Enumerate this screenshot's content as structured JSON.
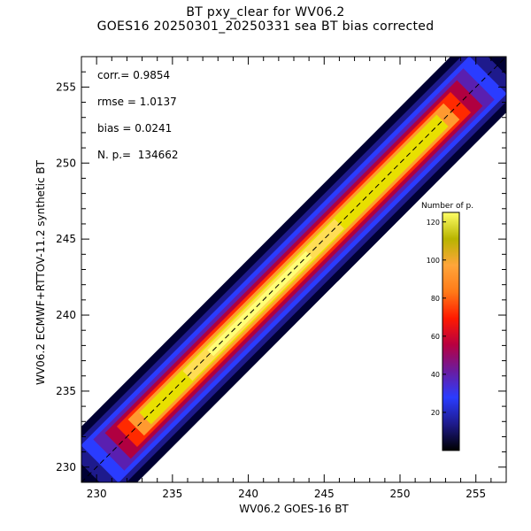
{
  "chart_data": {
    "type": "heatmap",
    "title": "BT pxy_clear for WV06.2",
    "subtitle": "GOES16 20250301_20250331 sea BT bias corrected",
    "xlabel": "WV06.2 GOES-16 BT",
    "ylabel": "WV06.2 ECMWF+RTTOV-11.2 synthetic BT",
    "xlim": [
      229,
      257
    ],
    "ylim": [
      229,
      257
    ],
    "x_ticks": [
      230,
      235,
      240,
      245,
      250,
      255
    ],
    "y_ticks": [
      230,
      235,
      240,
      245,
      250,
      255
    ],
    "stats": [
      {
        "label": "corr.=",
        "value": "0.9854"
      },
      {
        "label": "rmse =",
        "value": "1.0137"
      },
      {
        "label": "bias =",
        "value": "0.0241"
      },
      {
        "label": "N. p.=",
        "value": "134662"
      }
    ],
    "reference_line": {
      "style": "dashed",
      "x": [
        229,
        257
      ],
      "y": [
        229,
        257
      ]
    },
    "density": {
      "along_axis_extent": [
        229,
        257
      ],
      "half_width_outer": 2.6,
      "half_width_levels": [
        2.6,
        2.1,
        1.75,
        1.45,
        1.2,
        0.95,
        0.75,
        0.55
      ],
      "peak_region": [
        236,
        246
      ]
    },
    "colorbar": {
      "title": "Number of p.",
      "range": [
        0,
        125
      ],
      "ticks": [
        20,
        40,
        60,
        80,
        100,
        120
      ],
      "colors": [
        "#000000",
        "#1e1a8c",
        "#2a3cff",
        "#6a1ca0",
        "#b80040",
        "#ff1a00",
        "#ff7a18",
        "#ffa53a",
        "#b8b400",
        "#ffff66"
      ]
    },
    "grid": false,
    "legend": "none"
  }
}
